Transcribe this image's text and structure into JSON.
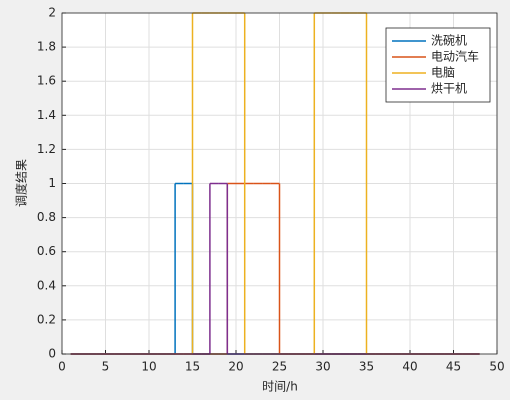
{
  "chart_data": {
    "type": "stairs",
    "xlabel": "时间/h",
    "ylabel": "调度结果",
    "x": [
      1,
      2,
      3,
      4,
      5,
      6,
      7,
      8,
      9,
      10,
      11,
      12,
      13,
      14,
      15,
      16,
      17,
      18,
      19,
      20,
      21,
      22,
      23,
      24,
      25,
      26,
      27,
      28,
      29,
      30,
      31,
      32,
      33,
      34,
      35,
      36,
      37,
      38,
      39,
      40,
      41,
      42,
      43,
      44,
      45,
      46,
      47,
      48
    ],
    "series": [
      {
        "name": "洗碗机",
        "color": "#0072BD",
        "values": [
          0,
          0,
          0,
          0,
          0,
          0,
          0,
          0,
          0,
          0,
          0,
          0,
          1,
          1,
          0,
          0,
          0,
          0,
          0,
          0,
          0,
          0,
          0,
          0,
          0,
          0,
          0,
          0,
          0,
          0,
          0,
          0,
          0,
          0,
          0,
          0,
          0,
          0,
          0,
          0,
          0,
          0,
          0,
          0,
          0,
          0,
          0,
          0
        ]
      },
      {
        "name": "电动汽车",
        "color": "#D95319",
        "values": [
          0,
          0,
          0,
          0,
          0,
          0,
          0,
          0,
          0,
          0,
          0,
          0,
          0,
          0,
          0,
          0,
          0,
          0,
          1,
          1,
          1,
          1,
          1,
          1,
          0,
          0,
          0,
          0,
          0,
          0,
          0,
          0,
          0,
          0,
          0,
          0,
          0,
          0,
          0,
          0,
          0,
          0,
          0,
          0,
          0,
          0,
          0,
          0
        ]
      },
      {
        "name": "电脑",
        "color": "#EDB120",
        "values": [
          0,
          0,
          0,
          0,
          0,
          0,
          0,
          0,
          0,
          0,
          0,
          0,
          0,
          0,
          2,
          2,
          2,
          2,
          2,
          2,
          0,
          0,
          0,
          0,
          0,
          0,
          0,
          0,
          2,
          2,
          2,
          2,
          2,
          2,
          0,
          0,
          0,
          0,
          0,
          0,
          0,
          0,
          0,
          0,
          0,
          0,
          0,
          0
        ]
      },
      {
        "name": "烘干机",
        "color": "#7E2F8E",
        "values": [
          0,
          0,
          0,
          0,
          0,
          0,
          0,
          0,
          0,
          0,
          0,
          0,
          0,
          0,
          0,
          0,
          1,
          1,
          0,
          0,
          0,
          0,
          0,
          0,
          0,
          0,
          0,
          0,
          0,
          0,
          0,
          0,
          0,
          0,
          0,
          0,
          0,
          0,
          0,
          0,
          0,
          0,
          0,
          0,
          0,
          0,
          0,
          0
        ]
      }
    ],
    "xlim": [
      0,
      50
    ],
    "xticks": [
      0,
      5,
      10,
      15,
      20,
      25,
      30,
      35,
      40,
      45,
      50
    ],
    "ylim": [
      0,
      2
    ],
    "yticks": [
      0,
      0.2,
      0.4,
      0.6,
      0.8,
      1,
      1.2,
      1.4,
      1.6,
      1.8,
      2
    ],
    "grid": true,
    "legend": "northeast"
  }
}
